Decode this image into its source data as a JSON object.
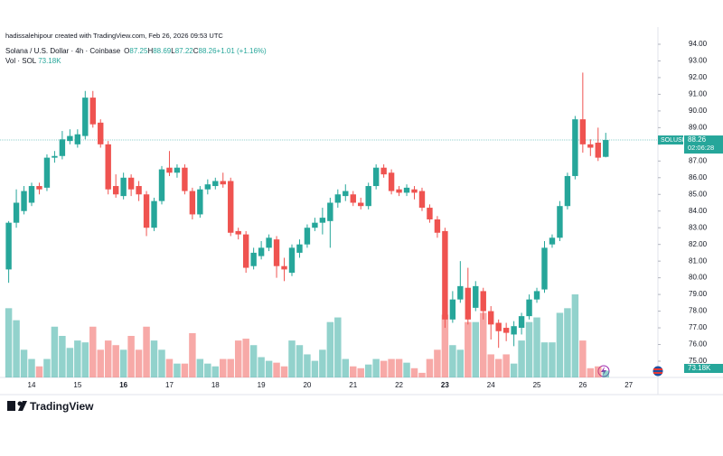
{
  "chart_data": {
    "type": "candlestick",
    "credit": "hadissalehipour created with TradingView.com, Feb 26, 2026 09:53 UTC",
    "symbol_title": "Solana / U.S. Dollar · 4h · Coinbase",
    "ohlc_legend": [
      {
        "key": "O",
        "text": "87.25"
      },
      {
        "key": "H",
        "text": "88.69"
      },
      {
        "key": "L",
        "text": "87.22"
      },
      {
        "key": "C",
        "text": "88.26"
      },
      {
        "key": "",
        "text": "+1.01 (+1.16%)"
      }
    ],
    "volume_title": "Vol · SOL",
    "volume_legend": "73.18K",
    "volume_label": "73.18K",
    "symbol_tag": "SOLUSD",
    "countdown": "02:06:28",
    "logo": "TradingView",
    "up_color": "#26a69a",
    "down_color": "#ef5350",
    "categories": [
      null,
      null,
      null,
      "14",
      null,
      null,
      null,
      null,
      null,
      "15",
      null,
      null,
      null,
      null,
      null,
      "16",
      null,
      null,
      null,
      null,
      null,
      "17",
      null,
      null,
      null,
      null,
      null,
      "18",
      null,
      null,
      null,
      null,
      null,
      "19",
      null,
      null,
      null,
      null,
      null,
      "20",
      null,
      null,
      null,
      null,
      null,
      "21",
      null,
      null,
      null,
      null,
      null,
      "22",
      null,
      null,
      null,
      null,
      null,
      "23",
      null,
      null,
      null,
      null,
      null,
      "24",
      null,
      null,
      null,
      null,
      null,
      "25",
      null,
      null,
      null,
      null,
      null,
      "26",
      null,
      null,
      null,
      null,
      null,
      "27"
    ],
    "open": [
      80.5,
      83.3,
      84.0,
      84.5,
      85.5,
      85.4,
      87.2,
      87.3,
      88.2,
      88.0,
      88.5,
      90.8,
      89.3,
      88.0,
      85.5,
      84.9,
      86.0,
      85.5,
      85.0,
      83.0,
      84.6,
      86.6,
      86.3,
      86.6,
      85.2,
      83.8,
      85.3,
      85.5,
      85.8,
      85.8,
      82.8,
      82.6,
      80.7,
      81.3,
      81.8,
      82.3,
      80.7,
      80.3,
      81.5,
      82.0,
      83.0,
      83.3,
      83.4,
      84.5,
      84.9,
      85.0,
      84.5,
      84.3,
      85.5,
      86.6,
      86.3,
      85.3,
      85.1,
      85.3,
      85.2,
      84.2,
      83.5,
      82.8,
      77.5,
      78.7,
      79.4,
      78.2,
      79.2,
      78.0,
      77.3,
      77.0,
      76.6,
      77.0,
      77.7,
      78.7,
      79.3,
      82.0,
      82.4,
      84.3,
      86.1,
      89.5,
      88.0,
      88.1,
      87.25,
      null,
      null,
      null
    ],
    "high": [
      83.4,
      85.3,
      85.5,
      85.7,
      85.7,
      87.4,
      87.6,
      88.8,
      88.9,
      88.9,
      91.2,
      91.2,
      89.5,
      88.2,
      86.2,
      86.3,
      86.2,
      85.8,
      85.2,
      84.8,
      86.7,
      87.6,
      86.8,
      86.8,
      85.4,
      85.5,
      85.9,
      86.0,
      86.3,
      86.0,
      83.0,
      82.8,
      81.8,
      82.2,
      82.6,
      82.5,
      81.2,
      82.0,
      82.3,
      83.2,
      83.6,
      84.2,
      84.8,
      85.3,
      85.6,
      85.2,
      84.8,
      85.7,
      86.8,
      86.8,
      86.5,
      85.5,
      85.6,
      85.5,
      85.4,
      84.4,
      83.7,
      83.0,
      79.2,
      81.0,
      80.6,
      79.8,
      79.4,
      78.3,
      77.5,
      77.3,
      77.4,
      77.9,
      79.0,
      79.4,
      82.2,
      82.6,
      84.6,
      86.3,
      89.7,
      92.3,
      88.3,
      89.0,
      88.69,
      null,
      null,
      null
    ],
    "low": [
      79.7,
      83.0,
      83.8,
      84.3,
      85.0,
      85.2,
      86.9,
      87.1,
      88.0,
      87.8,
      88.3,
      89.0,
      87.8,
      85.0,
      84.8,
      84.7,
      84.9,
      84.6,
      82.5,
      82.8,
      84.4,
      86.1,
      86.0,
      85.0,
      83.5,
      83.6,
      85.0,
      85.3,
      85.4,
      82.5,
      82.3,
      80.3,
      80.5,
      81.1,
      81.6,
      80.0,
      79.8,
      80.1,
      81.2,
      81.8,
      82.8,
      82.6,
      81.8,
      84.2,
      84.6,
      84.3,
      84.1,
      84.1,
      85.3,
      86.0,
      85.0,
      84.9,
      84.9,
      84.7,
      84.0,
      83.3,
      82.4,
      77.0,
      77.3,
      78.5,
      77.2,
      78.0,
      77.5,
      76.3,
      75.8,
      76.2,
      75.9,
      76.6,
      77.5,
      78.5,
      79.1,
      81.8,
      82.2,
      84.1,
      85.9,
      87.5,
      87.3,
      87.0,
      87.22,
      null,
      null,
      null
    ],
    "close": [
      83.3,
      84.5,
      85.2,
      85.5,
      85.3,
      87.2,
      87.3,
      88.3,
      88.5,
      88.6,
      90.8,
      89.2,
      88.0,
      85.3,
      85.0,
      86.0,
      85.3,
      85.0,
      83.0,
      84.6,
      86.5,
      86.3,
      86.6,
      85.2,
      83.8,
      85.3,
      85.6,
      85.8,
      85.6,
      82.7,
      82.6,
      80.6,
      81.5,
      81.8,
      82.4,
      80.7,
      80.5,
      81.8,
      82.0,
      83.0,
      83.3,
      83.6,
      84.5,
      85.0,
      85.2,
      84.5,
      84.3,
      85.5,
      86.6,
      86.2,
      85.2,
      85.1,
      85.4,
      85.1,
      84.2,
      83.5,
      82.7,
      77.5,
      78.7,
      79.5,
      77.5,
      79.5,
      78.0,
      77.2,
      76.8,
      76.7,
      77.1,
      77.7,
      78.7,
      79.2,
      81.8,
      82.4,
      84.3,
      86.1,
      89.5,
      88.0,
      87.8,
      87.2,
      88.26,
      null,
      null,
      null
    ],
    "volume": [
      750,
      620,
      300,
      200,
      120,
      200,
      550,
      450,
      320,
      400,
      380,
      550,
      300,
      400,
      350,
      300,
      450,
      300,
      550,
      400,
      300,
      200,
      150,
      150,
      480,
      200,
      150,
      120,
      200,
      200,
      400,
      420,
      350,
      220,
      180,
      160,
      120,
      400,
      350,
      250,
      180,
      300,
      600,
      650,
      200,
      120,
      100,
      140,
      200,
      180,
      200,
      200,
      160,
      100,
      50,
      200,
      300,
      680,
      350,
      300,
      600,
      600,
      700,
      250,
      200,
      250,
      150,
      400,
      600,
      650,
      380,
      380,
      700,
      750,
      900,
      400,
      100,
      120,
      73.18,
      null,
      null,
      null
    ],
    "ylim": [
      74.5,
      94.4
    ],
    "yticks": [
      {
        "value": 75,
        "label": "75.00"
      },
      {
        "value": 76,
        "label": "76.00"
      },
      {
        "value": 77,
        "label": "77.00"
      },
      {
        "value": 78,
        "label": "78.00"
      },
      {
        "value": 79,
        "label": "79.00"
      },
      {
        "value": 80,
        "label": "80.00"
      },
      {
        "value": 81,
        "label": "81.00"
      },
      {
        "value": 82,
        "label": "82.00"
      },
      {
        "value": 83,
        "label": "83.00"
      },
      {
        "value": 84,
        "label": "84.00"
      },
      {
        "value": 85,
        "label": "85.00"
      },
      {
        "value": 86,
        "label": "86.00"
      },
      {
        "value": 87,
        "label": "87.00"
      },
      {
        "value": 88,
        "label": "88.00"
      },
      {
        "value": 89,
        "label": "89.00"
      },
      {
        "value": 90,
        "label": "90.00"
      },
      {
        "value": 91,
        "label": "91.00"
      },
      {
        "value": 92,
        "label": "92.00"
      },
      {
        "value": 93,
        "label": "93.00"
      },
      {
        "value": 94,
        "label": "94.00"
      }
    ]
  }
}
